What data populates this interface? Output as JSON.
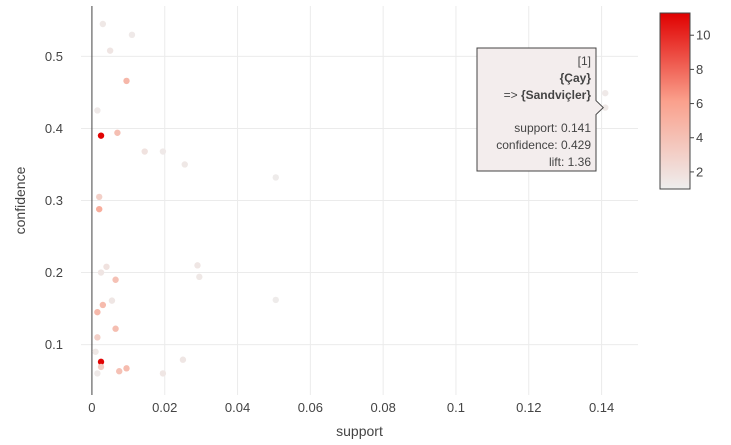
{
  "chart_data": {
    "type": "scatter",
    "title": "",
    "xlabel": "support",
    "ylabel": "confidence",
    "xlim": [
      -0.003,
      0.15
    ],
    "ylim": [
      0.03,
      0.57
    ],
    "x_ticks": [
      0,
      0.02,
      0.04,
      0.06,
      0.08,
      0.1,
      0.12,
      0.14
    ],
    "x_tick_labels": [
      "0",
      "0.02",
      "0.04",
      "0.06",
      "0.08",
      "0.1",
      "0.12",
      "0.14"
    ],
    "y_ticks": [
      0.1,
      0.2,
      0.3,
      0.4,
      0.5
    ],
    "y_tick_labels": [
      "0.1",
      "0.2",
      "0.3",
      "0.4",
      "0.5"
    ],
    "grid": true,
    "color_scale": {
      "name": "lift",
      "min": 1,
      "max": 11.3,
      "low_color": "#eeeeee",
      "high_color": "#e00000",
      "ticks": [
        2,
        4,
        6,
        8,
        10
      ],
      "tick_labels": [
        "2",
        "4",
        "6",
        "8",
        "10"
      ]
    },
    "points": [
      {
        "x": 0.003,
        "y": 0.545,
        "lift": 1.4
      },
      {
        "x": 0.011,
        "y": 0.53,
        "lift": 1.3
      },
      {
        "x": 0.005,
        "y": 0.508,
        "lift": 1.6
      },
      {
        "x": 0.0095,
        "y": 0.466,
        "lift": 4.6
      },
      {
        "x": 0.141,
        "y": 0.449,
        "lift": 1.3
      },
      {
        "x": 0.141,
        "y": 0.429,
        "lift": 1.36
      },
      {
        "x": 0.0015,
        "y": 0.425,
        "lift": 1.3
      },
      {
        "x": 0.007,
        "y": 0.394,
        "lift": 4.1
      },
      {
        "x": 0.0025,
        "y": 0.39,
        "lift": 11.2
      },
      {
        "x": 0.0145,
        "y": 0.368,
        "lift": 1.8
      },
      {
        "x": 0.0195,
        "y": 0.368,
        "lift": 1.3
      },
      {
        "x": 0.0255,
        "y": 0.35,
        "lift": 1.4
      },
      {
        "x": 0.0505,
        "y": 0.332,
        "lift": 1.2
      },
      {
        "x": 0.002,
        "y": 0.305,
        "lift": 3.0
      },
      {
        "x": 0.002,
        "y": 0.288,
        "lift": 5.3
      },
      {
        "x": 0.004,
        "y": 0.208,
        "lift": 1.8
      },
      {
        "x": 0.029,
        "y": 0.21,
        "lift": 1.5
      },
      {
        "x": 0.0025,
        "y": 0.2,
        "lift": 1.6
      },
      {
        "x": 0.0295,
        "y": 0.194,
        "lift": 1.4
      },
      {
        "x": 0.0065,
        "y": 0.19,
        "lift": 4.0
      },
      {
        "x": 0.0505,
        "y": 0.162,
        "lift": 1.2
      },
      {
        "x": 0.0055,
        "y": 0.161,
        "lift": 1.5
      },
      {
        "x": 0.003,
        "y": 0.155,
        "lift": 4.4
      },
      {
        "x": 0.0015,
        "y": 0.145,
        "lift": 4.5
      },
      {
        "x": 0.0065,
        "y": 0.122,
        "lift": 4.2
      },
      {
        "x": 0.0015,
        "y": 0.11,
        "lift": 3.0
      },
      {
        "x": 0.001,
        "y": 0.09,
        "lift": 1.4
      },
      {
        "x": 0.025,
        "y": 0.079,
        "lift": 1.5
      },
      {
        "x": 0.0025,
        "y": 0.076,
        "lift": 11.2
      },
      {
        "x": 0.0025,
        "y": 0.069,
        "lift": 3.2
      },
      {
        "x": 0.0095,
        "y": 0.067,
        "lift": 4.3
      },
      {
        "x": 0.0075,
        "y": 0.063,
        "lift": 4.0
      },
      {
        "x": 0.0195,
        "y": 0.06,
        "lift": 1.5
      },
      {
        "x": 0.0015,
        "y": 0.06,
        "lift": 1.3
      }
    ],
    "tooltip": {
      "anchor": {
        "x": 0.141,
        "y": 0.429
      },
      "index": "[1]",
      "lhs": "{Çay}",
      "rhs_prefix": "=> ",
      "rhs": "{Sandviçler}",
      "support": "support: 0.141",
      "confidence": "confidence: 0.429",
      "lift": "lift: 1.36"
    }
  }
}
